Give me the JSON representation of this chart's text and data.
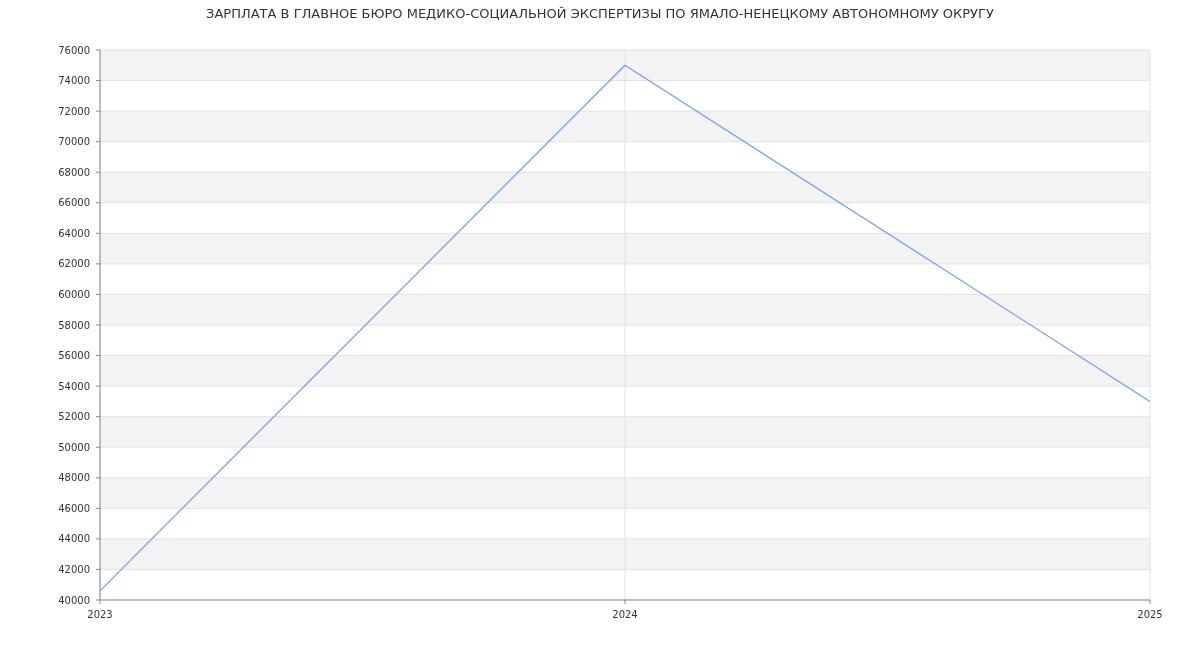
{
  "chart_data": {
    "type": "line",
    "title": "ЗАРПЛАТА В  ГЛАВНОЕ БЮРО МЕДИКО-СОЦИАЛЬНОЙ ЭКСПЕРТИЗЫ ПО ЯМАЛО-НЕНЕЦКОМУ АВТОНОМНОМУ ОКРУГУ",
    "categories": [
      "2023",
      "2024",
      "2025"
    ],
    "series": [
      {
        "color": "#6d9cf5",
        "values": [
          40600,
          75000,
          53000
        ]
      }
    ],
    "ylim": [
      40000,
      76000
    ],
    "yticks": [
      40000,
      42000,
      44000,
      46000,
      48000,
      50000,
      52000,
      54000,
      56000,
      58000,
      60000,
      62000,
      64000,
      66000,
      68000,
      70000,
      72000,
      74000,
      76000
    ],
    "grid": true,
    "marker": "none",
    "line_style": "solid"
  }
}
